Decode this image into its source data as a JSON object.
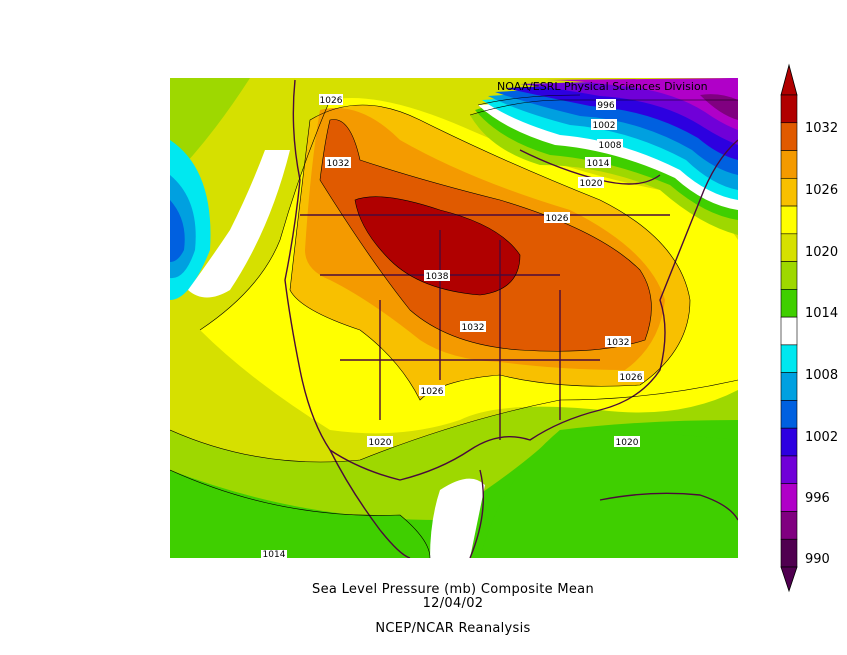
{
  "credit": "NOAA/ESRL Physical Sciences Division",
  "caption": {
    "line1": "Sea Level Pressure (mb) Composite Mean",
    "line2": "12/04/02",
    "line3": "NCEP/NCAR Reanalysis"
  },
  "colorbar": {
    "labels": [
      "1032",
      "1026",
      "1020",
      "1014",
      "1008",
      "1002",
      "996",
      "990"
    ],
    "colors": [
      "#b00000",
      "#e05a00",
      "#f49a00",
      "#f8c000",
      "#ffff00",
      "#d6e000",
      "#9ed800",
      "#3fcf00",
      "#ffffff",
      "#00e8f0",
      "#00a0e0",
      "#0060e0",
      "#2d00e0",
      "#7000d8",
      "#b000c8",
      "#800080",
      "#500050"
    ]
  },
  "contour_labels": [
    "1026",
    "1032",
    "996",
    "1002",
    "1008",
    "1014",
    "1020",
    "1026",
    "1038",
    "1032",
    "1032",
    "1026",
    "1026",
    "1020",
    "1020",
    "1014"
  ]
}
